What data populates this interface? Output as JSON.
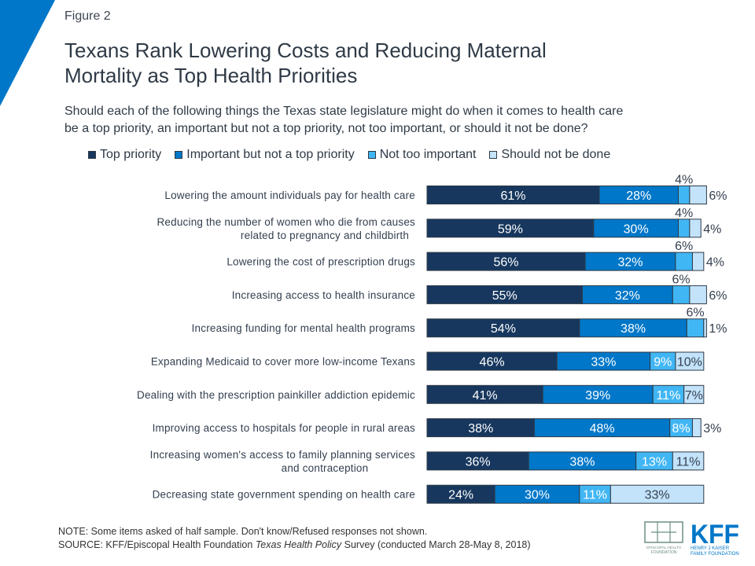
{
  "header": {
    "figure_label": "Figure 2",
    "title_line1": "Texans Rank Lowering Costs and Reducing Maternal",
    "title_line2": "Mortality as Top Health Priorities",
    "subtitle_line1": "Should each of the following things the Texas state legislature might do when it comes to health care",
    "subtitle_line2": "be a top priority, an important but not a top priority, not too important, or should it not be done?"
  },
  "colors": {
    "corner": "#0077c8",
    "top_priority": "#17375e",
    "important": "#0077c8",
    "not_too_important": "#41b6f4",
    "should_not_be_done": "#c3e3fb",
    "text": "#333f4f"
  },
  "chart_data": {
    "type": "bar",
    "orientation": "horizontal-stacked",
    "title": "Texans Rank Lowering Costs and Reducing Maternal Mortality as Top Health Priorities",
    "xlabel": "",
    "ylabel": "",
    "xlim": [
      0,
      100
    ],
    "grid": false,
    "legend_position": "top",
    "categories": [
      [
        "Lowering the amount individuals pay for health care"
      ],
      [
        "Reducing the number of women who die from causes",
        "related to pregnancy and childbirth"
      ],
      [
        "Lowering the cost of prescription drugs"
      ],
      [
        "Increasing access to health insurance"
      ],
      [
        "Increasing funding for mental health programs"
      ],
      [
        "Expanding Medicaid to cover more low-income Texans"
      ],
      [
        "Dealing with the prescription painkiller addiction epidemic"
      ],
      [
        "Improving access to hospitals for people in rural areas"
      ],
      [
        "Increasing women's access to family planning services",
        "and contraception"
      ],
      [
        "Decreasing state government spending on health care"
      ]
    ],
    "series": [
      {
        "name": "Top priority",
        "values": [
          61,
          59,
          56,
          55,
          54,
          46,
          41,
          38,
          36,
          24
        ]
      },
      {
        "name": "Important but not a top priority",
        "values": [
          28,
          30,
          32,
          32,
          38,
          33,
          39,
          48,
          38,
          30
        ]
      },
      {
        "name": "Not too important",
        "values": [
          4,
          4,
          6,
          6,
          6,
          9,
          11,
          8,
          13,
          11
        ]
      },
      {
        "name": "Should not be done",
        "values": [
          6,
          4,
          4,
          6,
          1,
          10,
          7,
          3,
          11,
          33
        ]
      }
    ]
  },
  "footer": {
    "note": "NOTE: Some items asked of half sample. Don't know/Refused responses not shown.",
    "source_prefix": "SOURCE: KFF/Episcopal Health Foundation ",
    "source_italic": "Texas Health Policy",
    "source_suffix": " Survey (conducted March 28-May 8, 2018)"
  },
  "logos": {
    "ehf_line1": "EPISCOPAL HEALTH",
    "ehf_line2": "FOUNDATION",
    "kff": "KFF",
    "kff_line1": "HENRY J KAISER",
    "kff_line2": "FAMILY FOUNDATION"
  }
}
